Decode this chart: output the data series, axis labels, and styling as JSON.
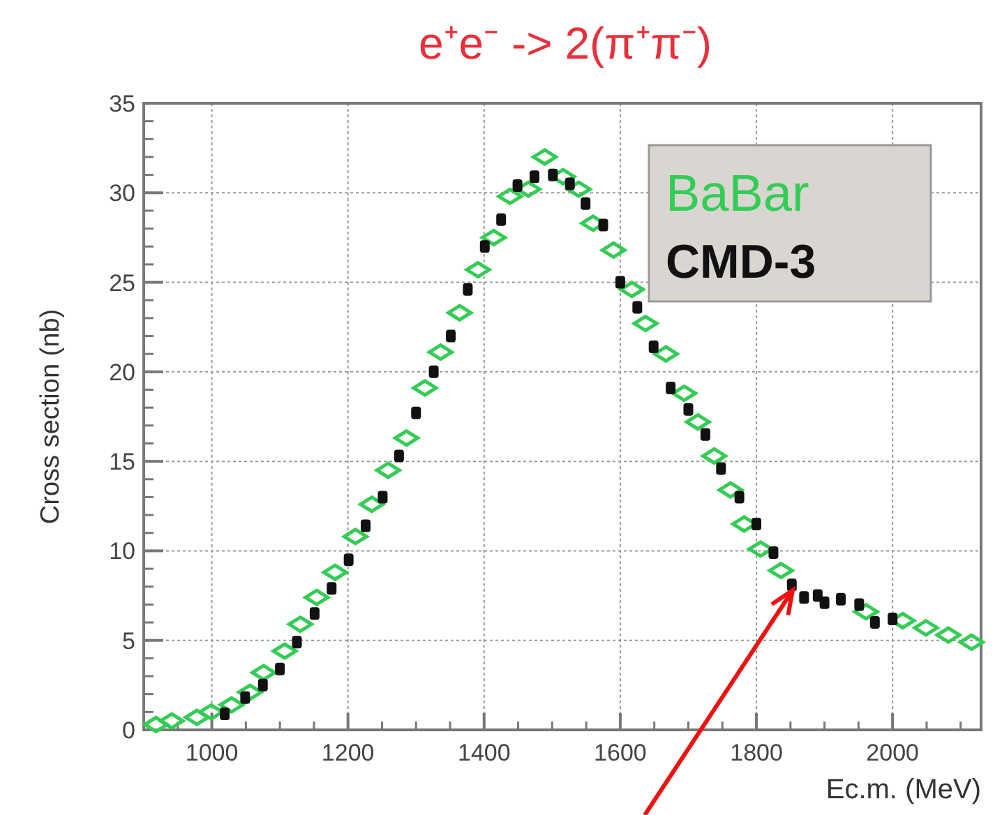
{
  "chart_data": {
    "type": "scatter",
    "title": "e⁺e⁻ -> 2(π⁺π⁻)",
    "xlabel": "Ec.m. (MeV)",
    "ylabel": "Cross section (nb)",
    "xlim": [
      900,
      2130
    ],
    "xticks": [
      1000,
      1200,
      1400,
      1600,
      1800,
      2000
    ],
    "ylim": [
      0,
      35
    ],
    "yticks": [
      0,
      5,
      10,
      15,
      20,
      25,
      30,
      35
    ],
    "grid": true,
    "legend": "top right",
    "series": [
      {
        "name": "BaBar",
        "color": "#33cc55",
        "marker": "diamond",
        "x": [
          918,
          941,
          978,
          999,
          1029,
          1056,
          1076,
          1107,
          1130,
          1154,
          1181,
          1211,
          1235,
          1259,
          1286,
          1313,
          1336,
          1364,
          1391,
          1414,
          1438,
          1465,
          1489,
          1516,
          1539,
          1560,
          1590,
          1617,
          1637,
          1667,
          1694,
          1714,
          1738,
          1762,
          1782,
          1806,
          1836,
          1961,
          2015,
          2049,
          2082,
          2116
        ],
        "values": [
          0.3,
          0.5,
          0.7,
          1.0,
          1.4,
          2.1,
          3.2,
          4.4,
          5.9,
          7.4,
          8.8,
          10.8,
          12.6,
          14.5,
          16.3,
          19.1,
          21.1,
          23.3,
          25.7,
          27.5,
          29.8,
          30.2,
          32.0,
          30.9,
          30.2,
          28.3,
          26.8,
          24.6,
          22.7,
          21.0,
          18.8,
          17.2,
          15.3,
          13.4,
          11.5,
          10.1,
          8.9,
          6.6,
          6.1,
          5.7,
          5.3,
          4.9
        ]
      },
      {
        "name": "CMD-3",
        "color": "#111111",
        "marker": "square",
        "x": [
          1019,
          1049,
          1075,
          1100,
          1125,
          1151,
          1176,
          1201,
          1226,
          1251,
          1275,
          1300,
          1326,
          1351,
          1376,
          1401,
          1425,
          1449,
          1474,
          1501,
          1526,
          1549,
          1575,
          1600,
          1625,
          1649,
          1674,
          1700,
          1725,
          1748,
          1775,
          1800,
          1825,
          1852,
          1870,
          1890,
          1900,
          1924,
          1951,
          1974,
          2000
        ],
        "values": [
          0.9,
          1.8,
          2.5,
          3.4,
          4.9,
          6.5,
          7.9,
          9.5,
          11.4,
          13.0,
          15.3,
          17.7,
          20.0,
          22.0,
          24.6,
          27.0,
          28.5,
          30.4,
          30.9,
          31.0,
          30.5,
          29.4,
          28.2,
          25.0,
          23.6,
          21.4,
          19.1,
          17.9,
          16.5,
          14.6,
          13.0,
          11.5,
          9.9,
          8.1,
          7.4,
          7.5,
          7.1,
          7.3,
          7.0,
          6.0,
          6.2
        ]
      }
    ]
  }
}
